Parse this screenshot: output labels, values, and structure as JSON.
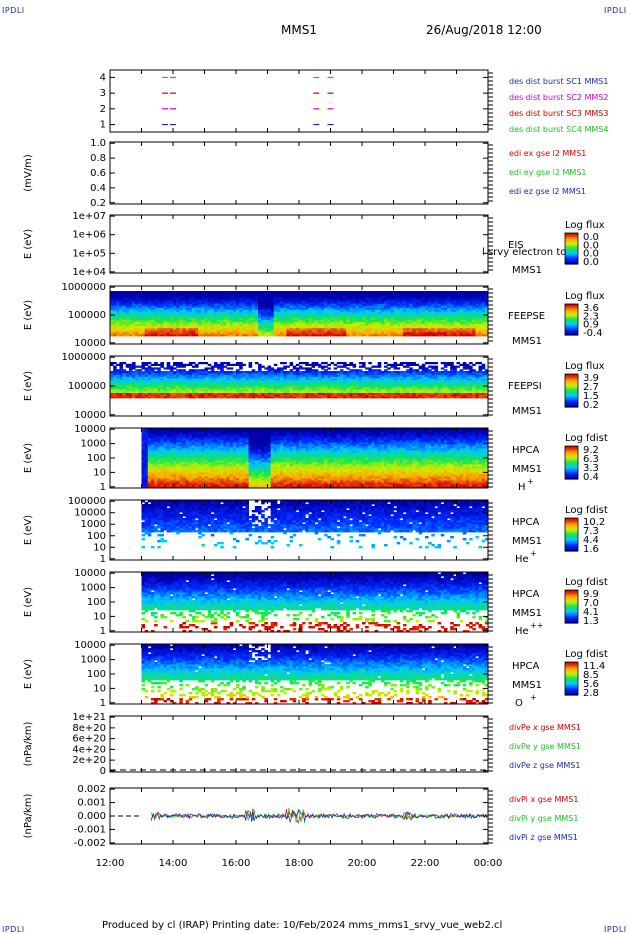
{
  "header": {
    "corner_label": "IPDLI",
    "spacecraft": "MMS1",
    "datetime": "26/Aug/2018 12:00"
  },
  "footer": {
    "text": "Produced by cl (IRAP)   Printing date: 10/Feb/2024   mms_mms1_srvy_vue_web2.cl"
  },
  "chart_data": [
    {
      "type": "scatter",
      "panel": "desdist",
      "yticks": [
        "1",
        "2",
        "3",
        "4"
      ],
      "legend": [
        {
          "label": "des dist burst SC1 MMS1",
          "color": "#1a2aa8"
        },
        {
          "label": "des dist burst SC2 MMS2",
          "color": "#cc00cc"
        },
        {
          "label": "des dist burst SC3 MMS3",
          "color": "#cc0000"
        },
        {
          "label": "des dist burst SC4 MMS4",
          "color": "#22bb22"
        }
      ],
      "bursts": [
        {
          "series": 4,
          "x": [
            13.75,
            14.0,
            18.55,
            19.0
          ]
        },
        {
          "series": 3,
          "x": [
            13.75,
            14.0,
            18.55,
            19.0
          ]
        },
        {
          "series": 2,
          "x": [
            13.75,
            14.0,
            18.55,
            19.0
          ]
        },
        {
          "series": 1,
          "x": [
            13.75,
            14.0,
            18.55,
            19.0
          ]
        }
      ]
    },
    {
      "type": "line",
      "panel": "edi",
      "ylabel": "(mV/m)",
      "yticks": [
        "0.2",
        "0.4",
        "0.6",
        "0.8",
        "1.0"
      ],
      "legend": [
        {
          "label": "edi ex gse l2 MMS1",
          "color": "#cc0000"
        },
        {
          "label": "edi ey gse l2 MMS1",
          "color": "#22bb22"
        },
        {
          "label": "edi ez gse l2 MMS1",
          "color": "#1a2aa8"
        }
      ]
    },
    {
      "type": "heatmap",
      "panel": "eis",
      "ylabel": "E (eV)",
      "yticks": [
        "1e+04",
        "1e+05",
        "1e+06",
        "1e+07"
      ],
      "instrument": "EIS",
      "spacecraft": "MMS1",
      "overlay_text": "l srvy electron to",
      "colorbar_title": "Log flux",
      "colorbar_ticks": [
        "0.0",
        "0.0",
        "0.0",
        "0.0"
      ]
    },
    {
      "type": "heatmap",
      "panel": "feepse",
      "ylabel": "E (eV)",
      "yticks": [
        "10000",
        "100000",
        "1000000"
      ],
      "instrument": "FEEPSE",
      "spacecraft": "MMS1",
      "colorbar_title": "Log flux",
      "colorbar_ticks": [
        "3.6",
        "2.3",
        "0.9",
        "-0.4"
      ]
    },
    {
      "type": "heatmap",
      "panel": "feepsi",
      "ylabel": "E (eV)",
      "yticks": [
        "10000",
        "100000",
        "1000000"
      ],
      "instrument": "FEEPSI",
      "spacecraft": "MMS1",
      "colorbar_title": "Log flux",
      "colorbar_ticks": [
        "3.9",
        "2.7",
        "1.5",
        "0.2"
      ]
    },
    {
      "type": "heatmap",
      "panel": "hpca_h",
      "ylabel": "E (eV)",
      "yticks": [
        "1",
        "10",
        "100",
        "1000",
        "10000"
      ],
      "instrument": "HPCA",
      "spacecraft": "MMS1",
      "species": "H",
      "species_sup": "+",
      "colorbar_title": "Log fdist",
      "colorbar_ticks": [
        "9.2",
        "6.3",
        "3.3",
        "0.4"
      ]
    },
    {
      "type": "heatmap",
      "panel": "hpca_he",
      "ylabel": "E (eV)",
      "yticks": [
        "1",
        "10",
        "100",
        "1000",
        "10000",
        "100000"
      ],
      "instrument": "HPCA",
      "spacecraft": "MMS1",
      "species": "He",
      "species_sup": "+",
      "colorbar_title": "Log fdist",
      "colorbar_ticks": [
        "10.2",
        "7.3",
        "4.4",
        "1.6"
      ]
    },
    {
      "type": "heatmap",
      "panel": "hpca_hepp",
      "ylabel": "E (eV)",
      "yticks": [
        "1",
        "10",
        "100",
        "1000",
        "10000"
      ],
      "instrument": "HPCA",
      "spacecraft": "MMS1",
      "species": "He",
      "species_sup": "++",
      "colorbar_title": "Log fdist",
      "colorbar_ticks": [
        "9.9",
        "7.0",
        "4.1",
        "1.3"
      ]
    },
    {
      "type": "heatmap",
      "panel": "hpca_o",
      "ylabel": "E (eV)",
      "yticks": [
        "1",
        "10",
        "100",
        "1000",
        "10000"
      ],
      "instrument": "HPCA",
      "spacecraft": "MMS1",
      "species": "O",
      "species_sup": "+",
      "colorbar_title": "Log fdist",
      "colorbar_ticks": [
        "11.4",
        "8.5",
        "5.6",
        "2.8"
      ]
    },
    {
      "type": "line",
      "panel": "divpe",
      "ylabel": "(nPa/km)",
      "yticks": [
        "0",
        "2e+20",
        "4e+20",
        "6e+20",
        "8e+20",
        "1e+21"
      ],
      "legend": [
        {
          "label": "divPe x gse MMS1",
          "color": "#cc0000"
        },
        {
          "label": "divPe y gse MMS1",
          "color": "#22bb22"
        },
        {
          "label": "divPe z gse MMS1",
          "color": "#1a2aa8"
        }
      ]
    },
    {
      "type": "line",
      "panel": "divpi",
      "ylabel": "(nPa/km)",
      "yticks": [
        "-0.002",
        "-0.001",
        "0.000",
        "0.001",
        "0.002"
      ],
      "ylim": [
        -0.0025,
        0.0025
      ],
      "legend": [
        {
          "label": "divPi x gse MMS1",
          "color": "#cc0000"
        },
        {
          "label": "divPi y gse MMS1",
          "color": "#22bb22"
        },
        {
          "label": "divPi z gse MMS1",
          "color": "#1a2aa8"
        }
      ]
    }
  ],
  "time_axis": {
    "ticks": [
      "12:00",
      "14:00",
      "16:00",
      "18:00",
      "20:00",
      "22:00",
      "00:00"
    ],
    "xlim": [
      12,
      24
    ]
  }
}
